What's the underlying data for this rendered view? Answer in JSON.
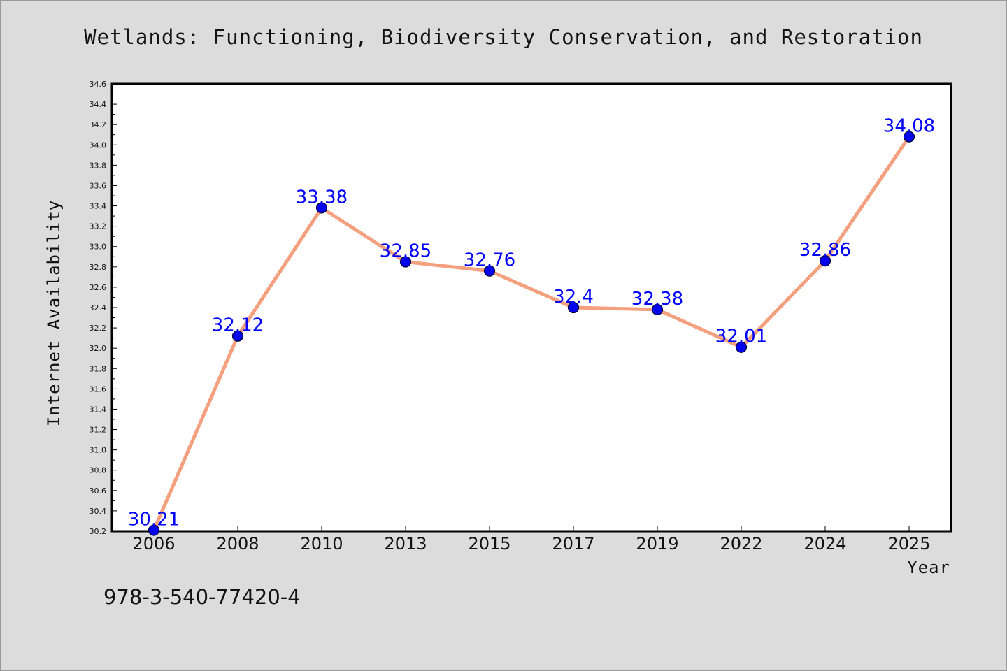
{
  "chart_data": {
    "type": "line",
    "title": "Wetlands: Functioning, Biodiversity Conservation, and Restoration",
    "xlabel": "Year",
    "ylabel": "Internet Availability",
    "categories": [
      "2006",
      "2008",
      "2010",
      "2013",
      "2015",
      "2017",
      "2019",
      "2022",
      "2024",
      "2025"
    ],
    "series": [
      {
        "values": [
          30.21,
          32.12,
          33.38,
          32.85,
          32.76,
          32.4,
          32.38,
          32.01,
          32.86,
          34.08
        ],
        "data_labels": [
          "30.21",
          "32.12",
          "33.38",
          "32.85",
          "32.76",
          "32.4",
          "32.38",
          "32.01",
          "32.86",
          "34.08"
        ]
      }
    ],
    "ylim": [
      30.2,
      34.6
    ],
    "yticks": [
      "30.2",
      "30.4",
      "30.6",
      "30.8",
      "31.0",
      "31.2",
      "31.4",
      "31.6",
      "31.8",
      "32.0",
      "32.2",
      "32.4",
      "32.6",
      "32.8",
      "33.0",
      "33.2",
      "33.4",
      "33.6",
      "33.8",
      "34.0",
      "34.2",
      "34.4",
      "34.6"
    ],
    "grid": false,
    "legend": "none",
    "colors": {
      "line": "#f4a07e",
      "marker": "#0000ee",
      "marker_edge": "#000033",
      "data_label": "#0000ff",
      "plot_background": "#ffffff",
      "figure_background": "#dcdcdc"
    }
  },
  "footnote": "978-3-540-77420-4"
}
